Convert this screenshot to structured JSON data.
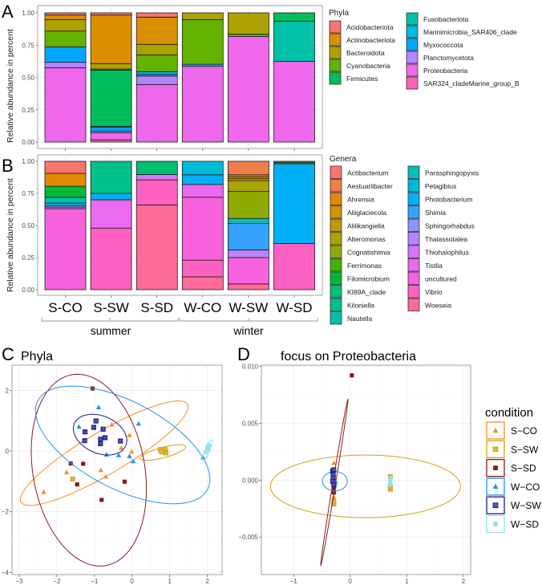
{
  "chart_data": [
    {
      "panel": "A",
      "type": "bar",
      "stacked": true,
      "ylabel": "Relative abundance in percent",
      "ylim": [
        0,
        1
      ],
      "yticks": [
        0,
        0.25,
        0.5,
        0.75,
        1
      ],
      "legend_title": "Phyla",
      "legend": [
        {
          "name": "Acidobacteriota",
          "color": "#F8766D"
        },
        {
          "name": "Actinobacteriota",
          "color": "#DB8E00"
        },
        {
          "name": "Bacteroidota",
          "color": "#AEA200"
        },
        {
          "name": "Cyanobacteria",
          "color": "#64B200"
        },
        {
          "name": "Firmicutes",
          "color": "#00BD5C"
        },
        {
          "name": "Fusobacteriota",
          "color": "#00C1A7"
        },
        {
          "name": "Marinimicrobia_SAR406_clade",
          "color": "#00BADE"
        },
        {
          "name": "Myxococcota",
          "color": "#00A6FF"
        },
        {
          "name": "Planctomycetota",
          "color": "#B385FF"
        },
        {
          "name": "Proteobacteria",
          "color": "#EF67EB"
        },
        {
          "name": "SAR324_cladeMarine_group_B",
          "color": "#FF63B6"
        }
      ],
      "categories": [
        "S-CO",
        "S-SW",
        "S-SD",
        "W-CO",
        "W-SW",
        "W-SD"
      ],
      "bars": [
        [
          [
            "Proteobacteria",
            0.575
          ],
          [
            "Planctomycetota",
            0.042
          ],
          [
            "Myxococcota",
            0.12
          ],
          [
            "Cyanobacteria",
            0.122
          ],
          [
            "Bacteroidota",
            0.089
          ],
          [
            "Actinobacteriota",
            0.035
          ],
          [
            "Acidobacteriota",
            0.017
          ]
        ],
        [
          [
            "SAR324_cladeMarine_group_B",
            0.017
          ],
          [
            "Proteobacteria",
            0.055
          ],
          [
            "Planctomycetota",
            0.013
          ],
          [
            "Myxococcota",
            0.029
          ],
          [
            "Marinimicrobia_SAR406_clade",
            0.008
          ],
          [
            "Firmicutes",
            0.435
          ],
          [
            "Cyanobacteria",
            0.008
          ],
          [
            "Bacteroidota",
            0.042
          ],
          [
            "Actinobacteriota",
            0.376
          ],
          [
            "Acidobacteriota",
            0.017
          ]
        ],
        [
          [
            "Proteobacteria",
            0.445
          ],
          [
            "Planctomycetota",
            0.066
          ],
          [
            "Myxococcota",
            0.013
          ],
          [
            "Marinimicrobia_SAR406_clade",
            0.021
          ],
          [
            "Cyanobacteria",
            0.13
          ],
          [
            "Bacteroidota",
            0.081
          ],
          [
            "Actinobacteriota",
            0.211
          ],
          [
            "Acidobacteriota",
            0.033
          ]
        ],
        [
          [
            "Proteobacteria",
            0.586
          ],
          [
            "Myxococcota",
            0.016
          ],
          [
            "Cyanobacteria",
            0.346
          ],
          [
            "Bacteroidota",
            0.052
          ]
        ],
        [
          [
            "Proteobacteria",
            0.818
          ],
          [
            "Cyanobacteria",
            0.018
          ],
          [
            "Bacteroidota",
            0.164
          ]
        ],
        [
          [
            "Proteobacteria",
            0.625
          ],
          [
            "Fusobacteriota",
            0.311
          ],
          [
            "Firmicutes",
            0.064
          ]
        ]
      ]
    },
    {
      "panel": "B",
      "type": "bar",
      "stacked": true,
      "ylabel": "Relative abundance in percent",
      "ylim": [
        0,
        1
      ],
      "yticks": [
        0,
        0.25,
        0.5,
        0.75,
        1
      ],
      "legend_title": "Genera",
      "legend": [
        {
          "name": "Actibacterium",
          "color": "#F8766D"
        },
        {
          "name": "Aestuariibacter",
          "color": "#EF7F49"
        },
        {
          "name": "Ahrensia",
          "color": "#E38900"
        },
        {
          "name": "Aliiglaciecola",
          "color": "#D49200"
        },
        {
          "name": "Alilikangiella",
          "color": "#C19A00"
        },
        {
          "name": "Alteromonas",
          "color": "#ABA300"
        },
        {
          "name": "Cognatishimia",
          "color": "#8FAA00"
        },
        {
          "name": "Ferrimonas",
          "color": "#3EB400"
        },
        {
          "name": "Filomicrobium",
          "color": "#00BA38"
        },
        {
          "name": "KI89A_clade",
          "color": "#00BE70"
        },
        {
          "name": "Kiloniella",
          "color": "#00C08B"
        },
        {
          "name": "Nautella",
          "color": "#00C1A3"
        },
        {
          "name": "Parasphingopyxis",
          "color": "#00BFBB"
        },
        {
          "name": "Pelagibius",
          "color": "#00BAD8"
        },
        {
          "name": "Photobacterium",
          "color": "#00B0F6"
        },
        {
          "name": "Shimia",
          "color": "#35A2FF"
        },
        {
          "name": "Sphingorhabdus",
          "color": "#8F91FF"
        },
        {
          "name": "Thalassotalea",
          "color": "#B983FF"
        },
        {
          "name": "Thiohalophilus",
          "color": "#D874FD"
        },
        {
          "name": "Tistlia",
          "color": "#EA6AF1"
        },
        {
          "name": "uncultured",
          "color": "#F862DF"
        },
        {
          "name": "Vibrio",
          "color": "#FF61C3"
        },
        {
          "name": "Woeseia",
          "color": "#FF6A98"
        }
      ],
      "categories": [
        "S-CO",
        "S-SW",
        "S-SD",
        "W-CO",
        "W-SW",
        "W-SD"
      ],
      "groups": [
        {
          "label": "summer",
          "categories": [
            "S-CO",
            "S-SW",
            "S-SD"
          ]
        },
        {
          "label": "winter",
          "categories": [
            "W-CO",
            "W-SW",
            "W-SD"
          ]
        }
      ],
      "bars": [
        [
          [
            "uncultured",
            0.631
          ],
          [
            "Thalassotalea",
            0.012
          ],
          [
            "Sphingorhabdus",
            0.012
          ],
          [
            "Pelagibius",
            0.02
          ],
          [
            "Parasphingopyxis",
            0.045
          ],
          [
            "Filomicrobium",
            0.086
          ],
          [
            "Ahrensia",
            0.1
          ],
          [
            "Actibacterium",
            0.094
          ]
        ],
        [
          [
            "Vibrio",
            0.48
          ],
          [
            "Tistlia",
            0.22
          ],
          [
            "Photobacterium",
            0.05
          ],
          [
            "Kiloniella",
            0.25
          ]
        ],
        [
          [
            "Woeseia",
            0.66
          ],
          [
            "Vibrio",
            0.195
          ],
          [
            "Thiohalophilus",
            0.042
          ],
          [
            "KI89A_clade",
            0.103
          ]
        ],
        [
          [
            "Woeseia",
            0.1
          ],
          [
            "Vibrio",
            0.13
          ],
          [
            "uncultured",
            0.49
          ],
          [
            "Tistlia",
            0.1
          ],
          [
            "Photobacterium",
            0.075
          ],
          [
            "Pelagibius",
            0.105
          ]
        ],
        [
          [
            "Woeseia",
            0.045
          ],
          [
            "uncultured",
            0.205
          ],
          [
            "Thalassotalea",
            0.06
          ],
          [
            "Shimia",
            0.205
          ],
          [
            "Parasphingopyxis",
            0.04
          ],
          [
            "Cognatishimia",
            0.21
          ],
          [
            "Alteromonas",
            0.085
          ],
          [
            "Alilikangiella",
            0.015
          ],
          [
            "Aliiglaciecola",
            0.015
          ],
          [
            "Ahrensia",
            0.015
          ],
          [
            "Aestuariibacter",
            0.105
          ]
        ],
        [
          [
            "Vibrio",
            0.36
          ],
          [
            "Photobacterium",
            0.62
          ],
          [
            "Filomicrobium",
            0.01
          ],
          [
            "Ferrimonas",
            0.01
          ]
        ]
      ]
    },
    {
      "panel": "C",
      "type": "scatter",
      "title": "Phyla",
      "xlim": [
        -3.19,
        2.39
      ],
      "ylim": [
        -4.07,
        2.83
      ],
      "xticks": [
        -3,
        -2,
        -1,
        0,
        1,
        2
      ],
      "xtick_labels": [
        "−3",
        "−2",
        "−1",
        "0",
        "1",
        "2"
      ],
      "yticks": [
        -4,
        -2,
        0,
        2
      ],
      "ytick_labels": [
        "−4",
        "−2",
        "0",
        "2"
      ],
      "series": [
        {
          "name": "S-CO",
          "color": "#FF8C1A",
          "shape": "triangle",
          "points": [
            [
              -0.54,
              0.87
            ],
            [
              -0.07,
              0.52
            ],
            [
              -0.29,
              0.1
            ],
            [
              -0.01,
              -0.02
            ],
            [
              -0.83,
              -0.63
            ],
            [
              -0.7,
              -0.84
            ],
            [
              -1.74,
              -0.7
            ],
            [
              -2.35,
              -1.35
            ]
          ],
          "ellipse": {
            "center": [
              -0.74,
              -0.07
            ],
            "u": [
              2.2,
              1.63
            ],
            "v": [
              -0.35,
              0.55
            ]
          }
        },
        {
          "name": "S-SW",
          "color": "#D4A017",
          "shape": "crossed-square",
          "points": [
            [
              -1.58,
              -0.92
            ],
            [
              0.75,
              0.05
            ],
            [
              0.82,
              0.03
            ],
            [
              0.88,
              0.05
            ],
            [
              0.85,
              -0.03
            ],
            [
              0.9,
              -0.06
            ],
            [
              0.78,
              -0.02
            ]
          ],
          "ellipse": {
            "center": [
              0.82,
              -0.05
            ],
            "u": [
              0.6,
              0.2
            ],
            "v": [
              -0.05,
              0.16
            ]
          }
        },
        {
          "name": "S-SD",
          "color": "#8B1A1A",
          "shape": "square",
          "points": [
            [
              -1.05,
              2.06
            ],
            [
              -1.63,
              -0.41
            ],
            [
              -1.3,
              -0.42
            ],
            [
              -1.46,
              -1.1
            ],
            [
              -0.2,
              -1.01
            ],
            [
              -0.81,
              -1.61
            ]
          ],
          "ellipse": {
            "center": [
              -1.15,
              -0.63
            ],
            "u": [
              -0.3,
              3.16
            ],
            "v": [
              1.5,
              0
            ]
          }
        },
        {
          "name": "W-CO",
          "color": "#1E90FF",
          "shape": "triangle",
          "points": [
            [
              -0.89,
              1.44
            ],
            [
              -1.41,
              0.8
            ],
            [
              0.17,
              0.9
            ],
            [
              -0.68,
              -0.12
            ],
            [
              -0.36,
              -0.14
            ],
            [
              -0.07,
              -0.17
            ],
            [
              0.03,
              -0.34
            ],
            [
              1.88,
              -0.21
            ]
          ],
          "ellipse": {
            "center": [
              -0.25,
              0.2
            ],
            "u": [
              2.25,
              -0.72
            ],
            "v": [
              -0.55,
              1.8
            ]
          }
        },
        {
          "name": "W-SW",
          "color": "#1A1A8B",
          "shape": "crossed-square",
          "points": [
            [
              -0.96,
              0.99
            ],
            [
              -1.25,
              0.63
            ],
            [
              -1.02,
              0.78
            ],
            [
              -0.77,
              0.72
            ],
            [
              -0.72,
              0.44
            ],
            [
              -0.84,
              0.39
            ],
            [
              -0.84,
              0.24
            ],
            [
              -1.26,
              0.34
            ],
            [
              -0.31,
              0.33
            ]
          ],
          "ellipse": {
            "center": [
              -0.85,
              0.54
            ],
            "u": [
              0.7,
              -0.3
            ],
            "v": [
              0.12,
              0.6
            ]
          }
        },
        {
          "name": "W-SD",
          "color": "#8EE5EE",
          "shape": "square",
          "points": [
            [
              2.0,
              0.13
            ],
            [
              2.02,
              0.06
            ],
            [
              1.96,
              -0.04
            ],
            [
              2.04,
              0.19
            ]
          ],
          "ellipse": {
            "center": [
              2.0,
              0.02
            ],
            "u": [
              0.12,
              0.35
            ],
            "v": [
              0.06,
              -0.02
            ]
          }
        }
      ]
    },
    {
      "panel": "D",
      "type": "scatter",
      "title": "focus on Proteobacteria",
      "xlim": [
        -1.57,
        2.13
      ],
      "ylim": [
        -0.0083,
        0.0101
      ],
      "xticks": [
        -1,
        0,
        1,
        2
      ],
      "xtick_labels": [
        "−1",
        "0",
        "1",
        "2"
      ],
      "yticks": [
        -0.005,
        0,
        0.005,
        0.01
      ],
      "ytick_labels": [
        "−0.005",
        "0.000",
        "0.005",
        "0.010"
      ],
      "series": [
        {
          "name": "S-CO",
          "color": "#FF8C1A",
          "shape": "triangle",
          "points": [
            [
              -0.29,
              -0.0015
            ],
            [
              -0.29,
              -0.0018
            ],
            [
              -0.29,
              0.0015
            ],
            [
              -0.28,
              -0.001
            ]
          ],
          "ellipse": null
        },
        {
          "name": "S-SW",
          "color": "#D4A017",
          "shape": "crossed-square",
          "points": [
            [
              -0.29,
              -0.0021
            ],
            [
              -0.29,
              -0.0019
            ],
            [
              0.71,
              -0.0008
            ],
            [
              0.71,
              -0.0006
            ],
            [
              0.71,
              0.0003
            ]
          ],
          "ellipse": {
            "center": [
              0.27,
              -0.00055
            ],
            "u": [
              1.68,
              0
            ],
            "v": [
              0,
              0.00275
            ]
          }
        },
        {
          "name": "S-SD",
          "color": "#8B1A1A",
          "shape": "square",
          "points": [
            [
              0.03,
              0.0092
            ],
            [
              -0.29,
              -0.0008
            ],
            [
              -0.29,
              -0.0011
            ],
            [
              -0.28,
              -0.0005
            ]
          ],
          "ellipse": {
            "center": [
              -0.28,
              -0.0002
            ],
            "u": [
              0.24,
              0.0073
            ],
            "v": [
              0.025,
              0
            ]
          }
        },
        {
          "name": "W-CO",
          "color": "#1E90FF",
          "shape": "triangle",
          "points": [
            [
              -0.27,
              -0.0003
            ],
            [
              -0.26,
              -0.0001
            ],
            [
              -0.29,
              0.0002
            ]
          ],
          "ellipse": {
            "center": [
              -0.27,
              -0.0001
            ],
            "u": [
              0.22,
              0
            ],
            "v": [
              0,
              0.00085
            ]
          }
        },
        {
          "name": "W-SW",
          "color": "#1A1A8B",
          "shape": "crossed-square",
          "points": [
            [
              -0.31,
              0.0008
            ],
            [
              -0.3,
              0.0005
            ],
            [
              -0.3,
              0.0002
            ],
            [
              -0.31,
              -0.0001
            ],
            [
              -0.29,
              -0.0004
            ],
            [
              -0.29,
              0.0009
            ]
          ],
          "ellipse": null
        },
        {
          "name": "W-SD",
          "color": "#8EE5EE",
          "shape": "square",
          "points": [
            [
              0.71,
              0.0002
            ],
            [
              0.71,
              -0.0002
            ],
            [
              0.71,
              -0.0004
            ],
            [
              0.71,
              0.0
            ]
          ],
          "ellipse": null
        }
      ]
    }
  ],
  "legend_condition": {
    "title": "condition",
    "items": [
      "S-CO",
      "S-SW",
      "S-SD",
      "W-CO",
      "W-SW",
      "W-SD"
    ]
  }
}
